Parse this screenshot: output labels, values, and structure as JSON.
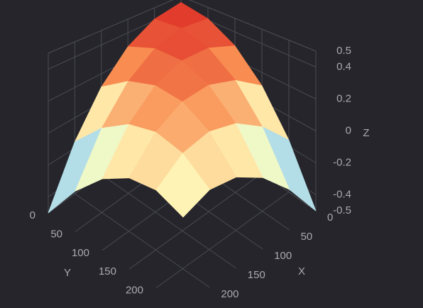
{
  "chart_data": {
    "type": "surface",
    "x": [
      0,
      50,
      100,
      150,
      200,
      250
    ],
    "y": [
      0,
      50,
      100,
      150,
      200,
      250
    ],
    "z": [
      [
        0.45,
        0.412,
        0.298,
        0.108,
        -0.158,
        -0.5
      ],
      [
        0.412,
        0.43,
        0.372,
        0.238,
        0.028,
        -0.258
      ],
      [
        0.298,
        0.372,
        0.37,
        0.292,
        0.138,
        -0.092
      ],
      [
        0.108,
        0.238,
        0.292,
        0.27,
        0.172,
        -0.002
      ],
      [
        -0.158,
        0.028,
        0.138,
        0.172,
        0.13,
        0.012
      ],
      [
        -0.5,
        -0.258,
        -0.092,
        -0.002,
        0.012,
        -0.05
      ]
    ],
    "xlim": [
      0,
      250
    ],
    "ylim": [
      0,
      250
    ],
    "zlim": [
      -0.5,
      0.5
    ],
    "xticks": [
      0,
      50,
      100,
      150,
      200
    ],
    "yticks": [
      0,
      50,
      100,
      150,
      200
    ],
    "zticks": [
      -0.5,
      -0.4,
      -0.2,
      0,
      0.2,
      0.4,
      0.5
    ],
    "xlabel": "X",
    "ylabel": "Y",
    "zlabel": "Z",
    "colorscale": [
      "#4a1c9c",
      "#a9d9ec",
      "#ffffbf",
      "#f98e52",
      "#d7191c"
    ],
    "grid": true
  }
}
